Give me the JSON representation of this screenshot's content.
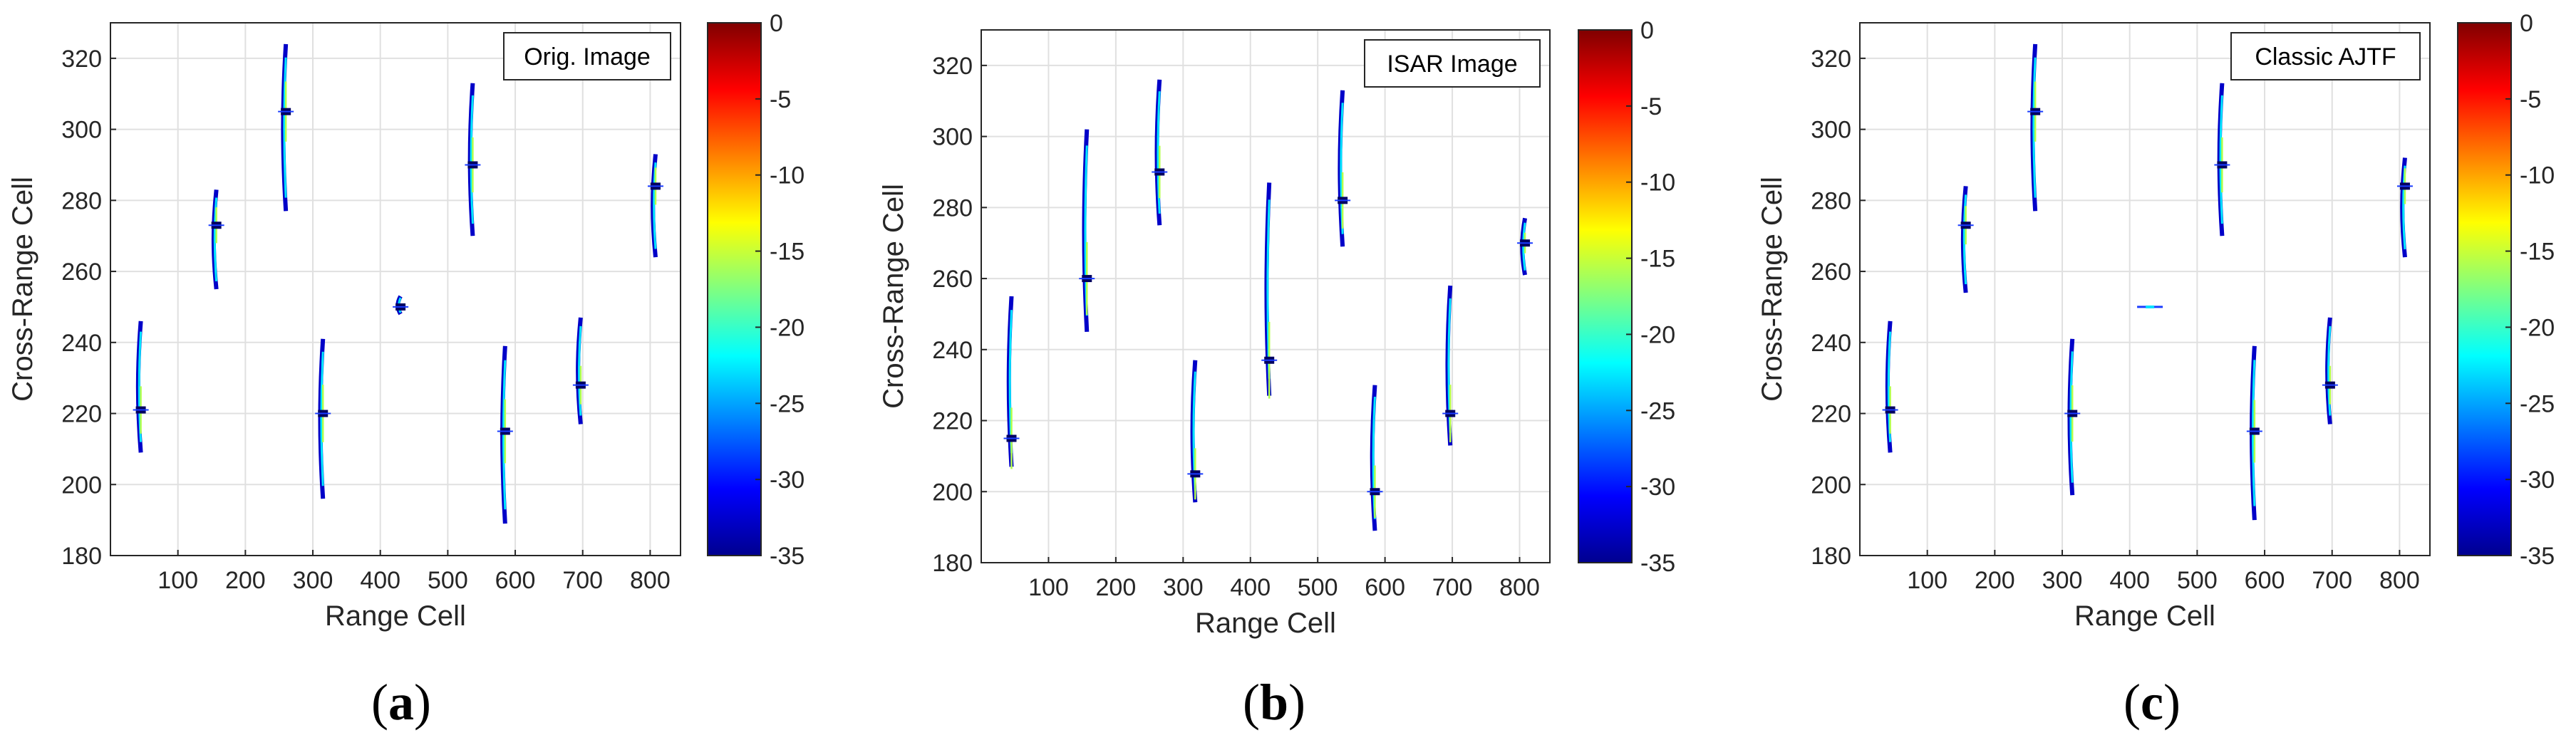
{
  "colors": {
    "grid": "#e0e0e0",
    "axis": "#262626",
    "colormap": "jet"
  },
  "figure": {
    "panels": [
      {
        "caption_letter": "a",
        "caption_open": "(",
        "caption_close": ")"
      },
      {
        "caption_letter": "b",
        "caption_open": "(",
        "caption_close": ")"
      },
      {
        "caption_letter": "c",
        "caption_open": "(",
        "caption_close": ")"
      }
    ]
  },
  "chart_data": [
    {
      "type": "scatter",
      "title": "",
      "legend": "Orig. Image",
      "legend_position": "top-right",
      "xlabel": "Range Cell",
      "ylabel": "Cross-Range Cell",
      "xlim": [
        0,
        845
      ],
      "ylim": [
        180,
        330
      ],
      "xticks": [
        100,
        200,
        300,
        400,
        500,
        600,
        700,
        800
      ],
      "yticks": [
        180,
        200,
        220,
        240,
        260,
        280,
        300,
        320
      ],
      "grid": true,
      "colorbar": {
        "min": -35,
        "max": 0,
        "ticks": [
          0,
          -5,
          -10,
          -15,
          -20,
          -25,
          -30,
          -35
        ]
      },
      "scatterers": [
        {
          "x": 45,
          "y": 221,
          "ylo": 209,
          "yhi": 246
        },
        {
          "x": 157,
          "y": 273,
          "ylo": 255,
          "yhi": 283
        },
        {
          "x": 260,
          "y": 305,
          "ylo": 277,
          "yhi": 324
        },
        {
          "x": 315,
          "y": 220,
          "ylo": 196,
          "yhi": 241
        },
        {
          "x": 430,
          "y": 250,
          "ylo": 248,
          "yhi": 253
        },
        {
          "x": 537,
          "y": 290,
          "ylo": 270,
          "yhi": 313
        },
        {
          "x": 585,
          "y": 215,
          "ylo": 189,
          "yhi": 239
        },
        {
          "x": 697,
          "y": 228,
          "ylo": 217,
          "yhi": 247
        },
        {
          "x": 808,
          "y": 284,
          "ylo": 264,
          "yhi": 293
        }
      ]
    },
    {
      "type": "scatter",
      "title": "",
      "legend": "ISAR Image",
      "legend_position": "top-right",
      "xlabel": "Range Cell",
      "ylabel": "Cross-Range Cell",
      "xlim": [
        0,
        845
      ],
      "ylim": [
        180,
        330
      ],
      "xticks": [
        100,
        200,
        300,
        400,
        500,
        600,
        700,
        800
      ],
      "yticks": [
        180,
        200,
        220,
        240,
        260,
        280,
        300,
        320
      ],
      "grid": true,
      "colorbar": {
        "min": -35,
        "max": 0,
        "ticks": [
          0,
          -5,
          -10,
          -15,
          -20,
          -25,
          -30,
          -35
        ]
      },
      "scatterers": [
        {
          "x": 45,
          "y": 215,
          "ylo": 207,
          "yhi": 255
        },
        {
          "x": 157,
          "y": 260,
          "ylo": 245,
          "yhi": 302
        },
        {
          "x": 265,
          "y": 290,
          "ylo": 275,
          "yhi": 316
        },
        {
          "x": 318,
          "y": 205,
          "ylo": 197,
          "yhi": 237
        },
        {
          "x": 428,
          "y": 237,
          "ylo": 227,
          "yhi": 287
        },
        {
          "x": 537,
          "y": 282,
          "ylo": 269,
          "yhi": 313
        },
        {
          "x": 585,
          "y": 200,
          "ylo": 189,
          "yhi": 230
        },
        {
          "x": 697,
          "y": 222,
          "ylo": 213,
          "yhi": 258
        },
        {
          "x": 808,
          "y": 270,
          "ylo": 261,
          "yhi": 277
        }
      ]
    },
    {
      "type": "scatter",
      "title": "",
      "legend": "Classic AJTF",
      "legend_position": "top-right",
      "xlabel": "Range Cell",
      "ylabel": "Cross-Range Cell",
      "xlim": [
        0,
        845
      ],
      "ylim": [
        180,
        330
      ],
      "xticks": [
        100,
        200,
        300,
        400,
        500,
        600,
        700,
        800
      ],
      "yticks": [
        180,
        200,
        220,
        240,
        260,
        280,
        300,
        320
      ],
      "grid": true,
      "colorbar": {
        "min": -35,
        "max": 0,
        "ticks": [
          0,
          -5,
          -10,
          -15,
          -20,
          -25,
          -30,
          -35
        ]
      },
      "scatterers": [
        {
          "x": 45,
          "y": 221,
          "ylo": 209,
          "yhi": 246
        },
        {
          "x": 157,
          "y": 273,
          "ylo": 254,
          "yhi": 284
        },
        {
          "x": 260,
          "y": 305,
          "ylo": 277,
          "yhi": 324
        },
        {
          "x": 315,
          "y": 220,
          "ylo": 197,
          "yhi": 241
        },
        {
          "x": 430,
          "y": 250,
          "ylo": 249,
          "yhi": 251
        },
        {
          "x": 537,
          "y": 290,
          "ylo": 270,
          "yhi": 313
        },
        {
          "x": 585,
          "y": 215,
          "ylo": 190,
          "yhi": 239
        },
        {
          "x": 697,
          "y": 228,
          "ylo": 217,
          "yhi": 247
        },
        {
          "x": 808,
          "y": 284,
          "ylo": 264,
          "yhi": 292
        }
      ]
    }
  ]
}
